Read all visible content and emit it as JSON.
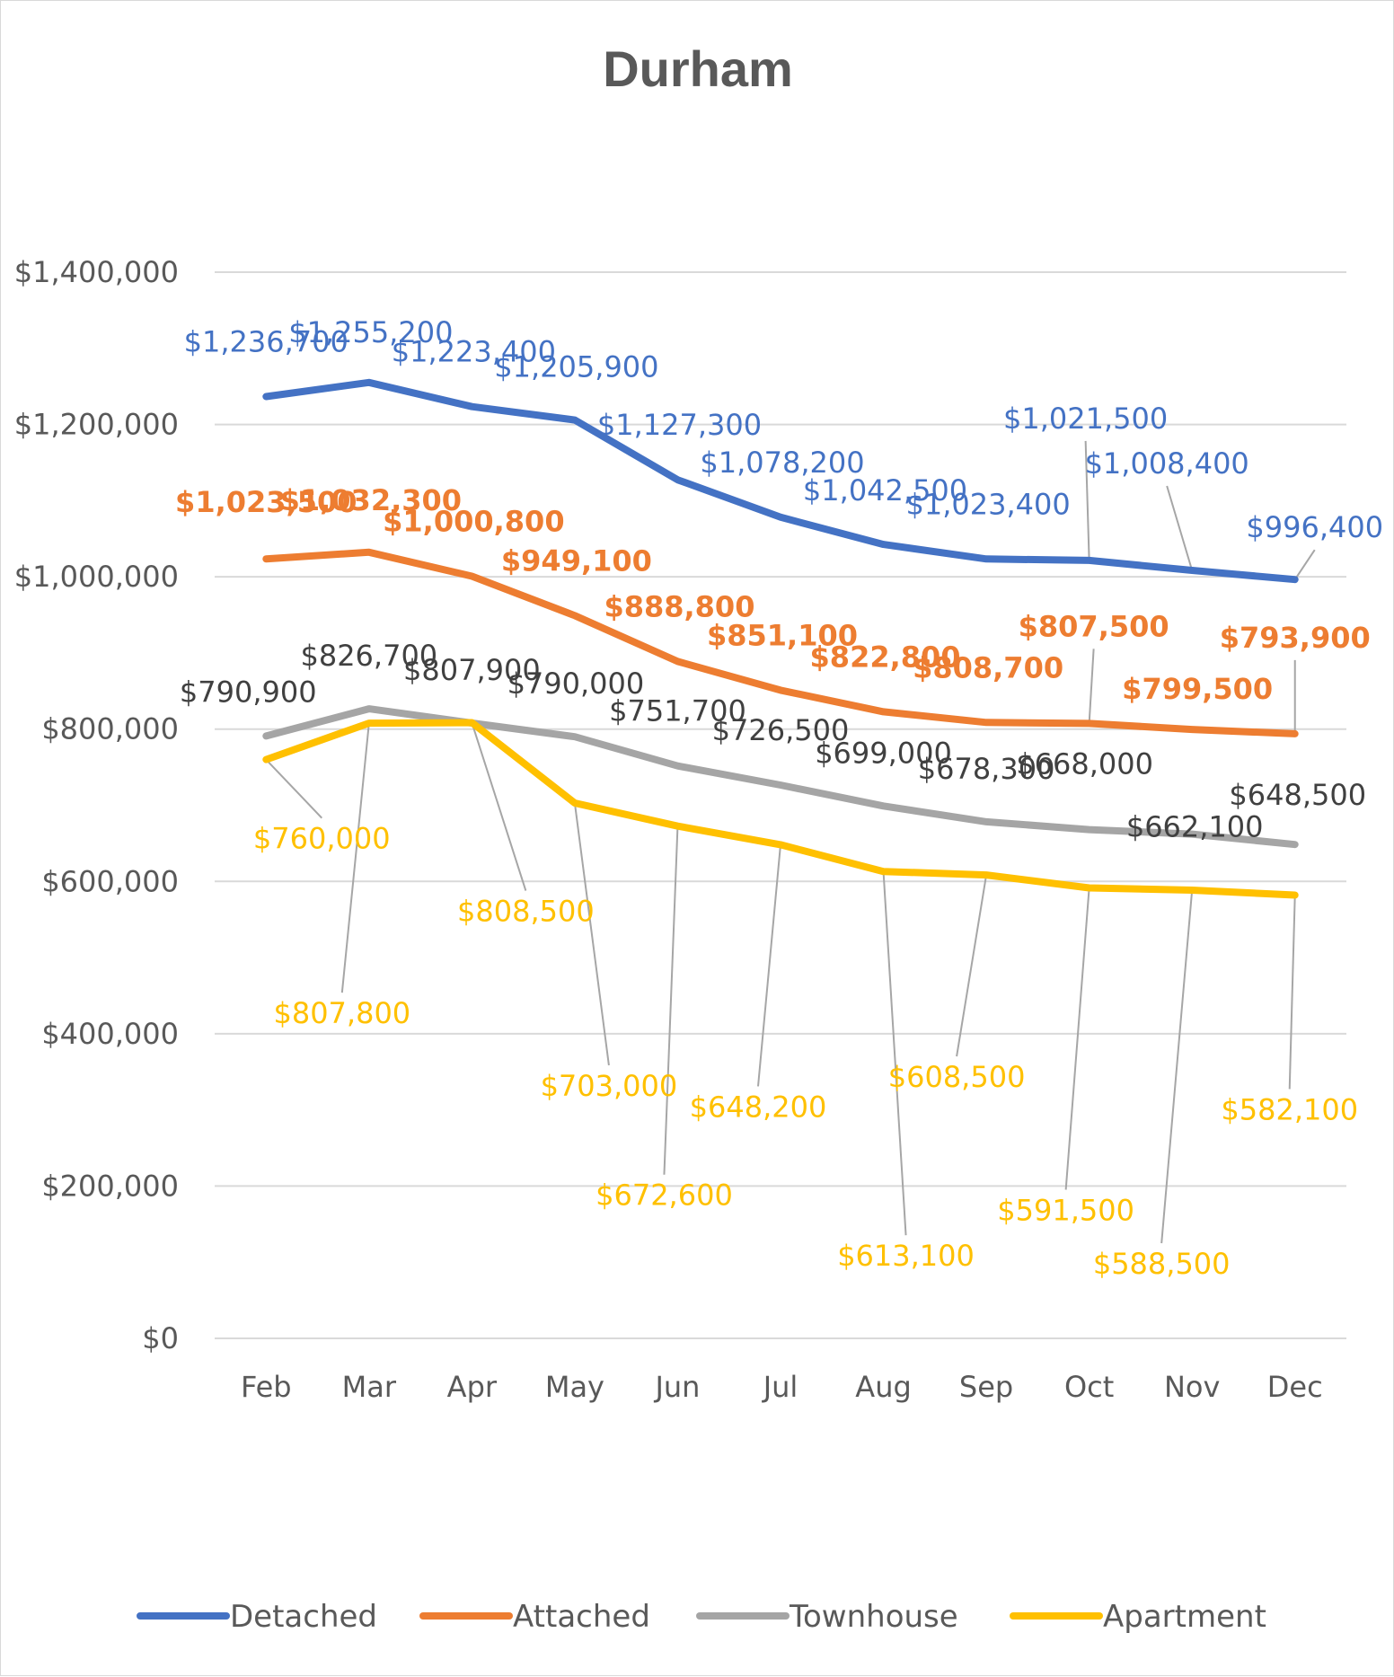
{
  "chart_data": {
    "type": "line",
    "title": "Durham",
    "xlabel": "",
    "ylabel": "",
    "ylim": [
      0,
      1400000
    ],
    "y_ticks": [
      "$0",
      "$200,000",
      "$400,000",
      "$600,000",
      "$800,000",
      "$1,000,000",
      "$1,200,000",
      "$1,400,000"
    ],
    "categories": [
      "Feb",
      "Mar",
      "Apr",
      "May",
      "Jun",
      "Jul",
      "Aug",
      "Sep",
      "Oct",
      "Nov",
      "Dec"
    ],
    "grid": true,
    "legend_position": "bottom",
    "series": [
      {
        "name": "Detached",
        "color": "#4472c4",
        "values": [
          1236700,
          1255200,
          1223400,
          1205900,
          1127300,
          1078200,
          1042500,
          1023400,
          1021500,
          1008400,
          996400
        ],
        "labels": [
          "$1,236,700",
          "$1,255,200",
          "$1,223,400",
          "$1,205,900",
          "$1,127,300",
          "$1,078,200",
          "$1,042,500",
          "$1,023,400",
          "$1,021,500",
          "$1,008,400",
          "$996,400"
        ]
      },
      {
        "name": "Attached",
        "color": "#ed7d31",
        "values": [
          1023500,
          1032300,
          1000800,
          949100,
          888800,
          851100,
          822800,
          808700,
          807500,
          799500,
          793900
        ],
        "labels": [
          "$1,023,500",
          "$1,032,300",
          "$1,000,800",
          "$949,100",
          "$888,800",
          "$851,100",
          "$822,800",
          "$808,700",
          "$807,500",
          "$799,500",
          "$793,900"
        ]
      },
      {
        "name": "Townhouse",
        "color": "#a5a5a5",
        "values": [
          790900,
          826700,
          807900,
          790000,
          751700,
          726500,
          699000,
          678300,
          668000,
          662100,
          648500
        ],
        "labels": [
          "$790,900",
          "$826,700",
          "$807,900",
          "$790,000",
          "$751,700",
          "$726,500",
          "$699,000",
          "$678,300",
          "$668,000",
          "$662,100",
          "$648,500"
        ]
      },
      {
        "name": "Apartment",
        "color": "#ffc000",
        "values": [
          760000,
          807800,
          808500,
          703000,
          672600,
          648200,
          613100,
          608500,
          591500,
          588500,
          582100
        ],
        "labels": [
          "$760,000",
          "$807,800",
          "$808,500",
          "$703,000",
          "$672,600",
          "$648,200",
          "$613,100",
          "$608,500",
          "$591,500",
          "$588,500",
          "$582,100"
        ]
      }
    ]
  }
}
